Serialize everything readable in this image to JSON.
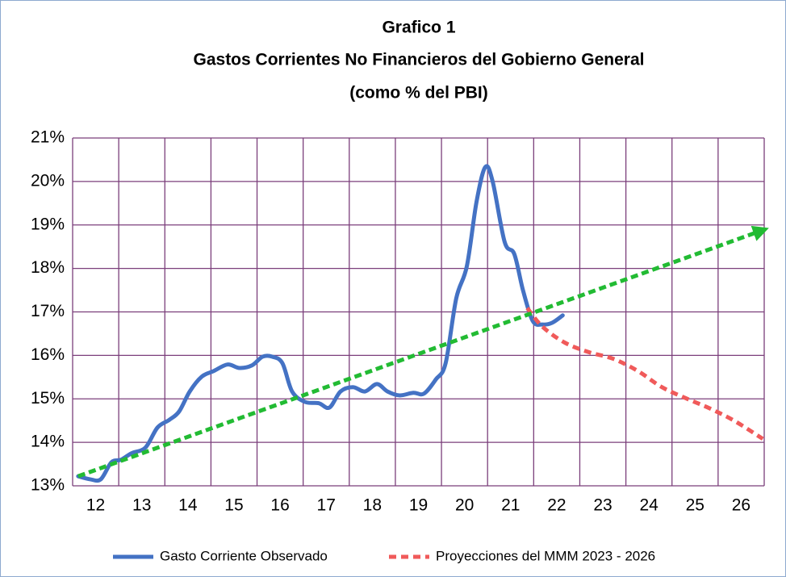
{
  "chart_data": {
    "type": "line",
    "title": [
      "Grafico 1",
      "Gastos Corrientes No Financieros del Gobierno General",
      "(como % del PBI)"
    ],
    "xlim": [
      11.5,
      26.5
    ],
    "xticks": [
      12,
      13,
      14,
      15,
      16,
      17,
      18,
      19,
      20,
      21,
      22,
      23,
      24,
      25,
      26
    ],
    "ylim": [
      13,
      21
    ],
    "yticks": [
      {
        "value": 13,
        "label": "13%"
      },
      {
        "value": 14,
        "label": "14%"
      },
      {
        "value": 15,
        "label": "15%"
      },
      {
        "value": 16,
        "label": "16%"
      },
      {
        "value": 17,
        "label": "17%"
      },
      {
        "value": 18,
        "label": "18%"
      },
      {
        "value": 19,
        "label": "19%"
      },
      {
        "value": 20,
        "label": "20%"
      },
      {
        "value": 21,
        "label": "21%"
      }
    ],
    "grid": true,
    "grid_color": "#7b3f7b",
    "legend": "bottom",
    "series": [
      {
        "name": "Gasto Corriente Observado",
        "color": "#4472c4",
        "dash": false,
        "x": [
          11.62,
          11.88,
          12.11,
          12.34,
          12.55,
          12.78,
          13.08,
          13.34,
          13.6,
          13.81,
          14.04,
          14.3,
          14.56,
          14.86,
          15.12,
          15.39,
          15.62,
          15.83,
          16.05,
          16.26,
          16.54,
          16.84,
          17.07,
          17.31,
          17.58,
          17.84,
          18.1,
          18.33,
          18.59,
          18.89,
          19.12,
          19.38,
          19.59,
          19.82,
          20.05,
          20.26,
          20.45,
          20.61,
          20.87,
          21.08,
          21.27,
          21.48,
          21.69,
          21.9,
          22.13
        ],
        "values": [
          13.22,
          13.15,
          13.15,
          13.54,
          13.6,
          13.75,
          13.88,
          14.34,
          14.52,
          14.71,
          15.17,
          15.51,
          15.64,
          15.79,
          15.71,
          15.77,
          15.97,
          15.97,
          15.82,
          15.17,
          14.93,
          14.9,
          14.8,
          15.17,
          15.27,
          15.17,
          15.34,
          15.17,
          15.08,
          15.14,
          15.12,
          15.45,
          15.82,
          17.31,
          18.05,
          19.53,
          20.33,
          20.0,
          18.61,
          18.33,
          17.49,
          16.79,
          16.71,
          16.75,
          16.92
        ]
      },
      {
        "name": "Proyecciones del MMM 2023 - 2026",
        "color": "#f05a5a",
        "dash": true,
        "x": [
          21.36,
          21.69,
          22.18,
          22.71,
          23.23,
          23.76,
          24.28,
          24.81,
          25.34,
          25.86,
          26.47
        ],
        "values": [
          17.09,
          16.66,
          16.29,
          16.07,
          15.92,
          15.64,
          15.27,
          15.01,
          14.77,
          14.49,
          14.08
        ]
      }
    ],
    "trend": {
      "color": "#22bb33",
      "x": [
        11.62,
        26.47
      ],
      "values": [
        13.22,
        18.88
      ]
    }
  }
}
